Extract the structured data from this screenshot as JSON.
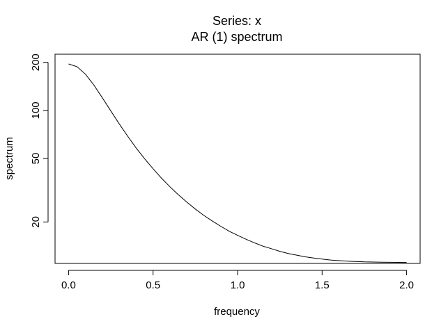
{
  "chart_data": {
    "type": "line",
    "title": "Series: x",
    "subtitle": "AR (1) spectrum",
    "xlabel": "frequency",
    "ylabel": "spectrum",
    "y_scale": "log",
    "xlim": [
      -0.08,
      2.08
    ],
    "ylim": [
      11.0,
      225.0
    ],
    "x_ticks": [
      0.0,
      0.5,
      1.0,
      1.5,
      2.0
    ],
    "x_tick_labels": [
      "0.0",
      "0.5",
      "1.0",
      "1.5",
      "2.0"
    ],
    "y_ticks": [
      20,
      50,
      100,
      200
    ],
    "y_tick_labels": [
      "20",
      "50",
      "100",
      "200"
    ],
    "grid": false,
    "line_color": "#000000",
    "series": [
      {
        "x": [
          0.0,
          0.05,
          0.1,
          0.15,
          0.2,
          0.25,
          0.3,
          0.35,
          0.4,
          0.45,
          0.5,
          0.55,
          0.6,
          0.65,
          0.7,
          0.75,
          0.8,
          0.85,
          0.9,
          0.95,
          1.0,
          1.05,
          1.1,
          1.15,
          1.2,
          1.25,
          1.3,
          1.35,
          1.4,
          1.45,
          1.5,
          1.55,
          1.6,
          1.65,
          1.7,
          1.75,
          1.8,
          1.85,
          1.9,
          1.95,
          2.0
        ],
        "y": [
          195.5,
          188.0,
          168.5,
          144.0,
          120.0,
          99.2,
          82.3,
          68.9,
          58.2,
          49.8,
          43.1,
          37.6,
          33.2,
          29.6,
          26.6,
          24.1,
          22.0,
          20.3,
          18.8,
          17.5,
          16.5,
          15.6,
          14.8,
          14.1,
          13.6,
          13.1,
          12.7,
          12.4,
          12.1,
          11.9,
          11.7,
          11.55,
          11.45,
          11.37,
          11.3,
          11.25,
          11.22,
          11.2,
          11.18,
          11.17,
          11.16
        ]
      }
    ]
  }
}
